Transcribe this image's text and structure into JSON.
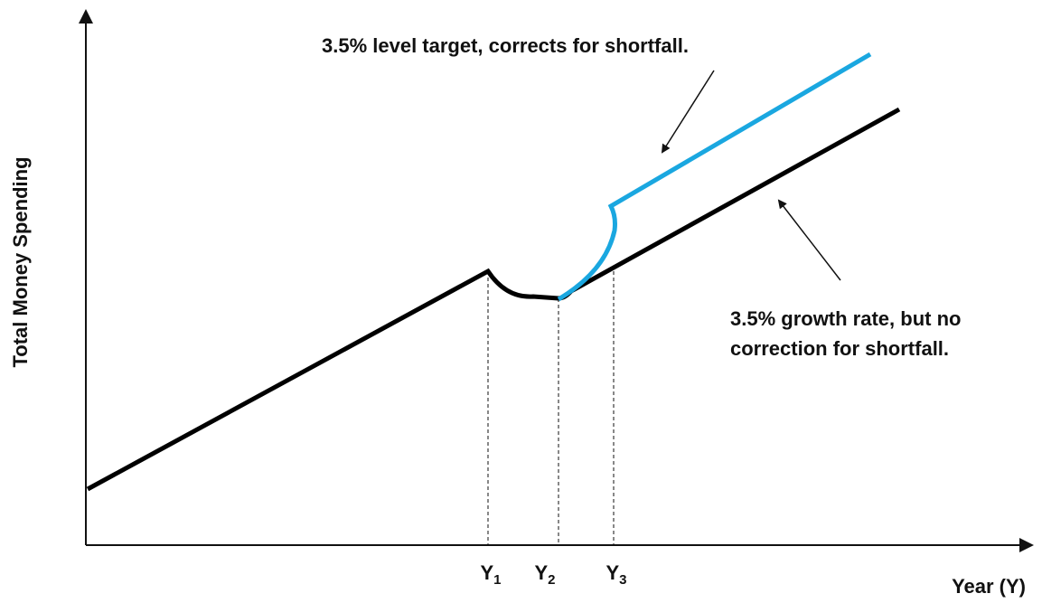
{
  "axes": {
    "y_label": "Total Money Spending",
    "x_label": "Year (Y)"
  },
  "ticks": [
    {
      "main": "Y",
      "sub": "1"
    },
    {
      "main": "Y",
      "sub": "2"
    },
    {
      "main": "Y",
      "sub": "3"
    }
  ],
  "annotations": {
    "level_target": "3.5% level target, corrects for shortfall.",
    "growth_rate": [
      "3.5% growth rate, but no",
      "correction for shortfall."
    ]
  }
}
